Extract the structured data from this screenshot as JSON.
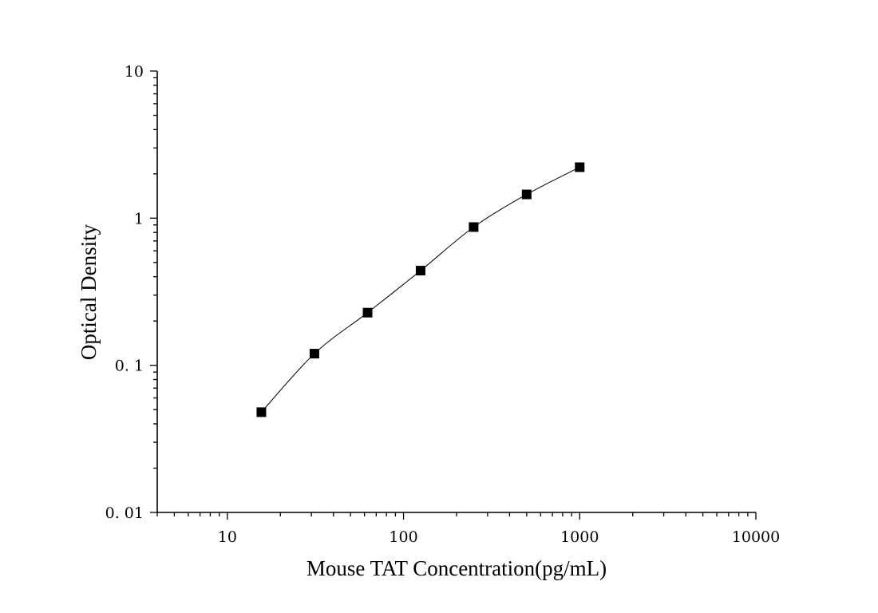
{
  "chart_data": {
    "type": "scatter",
    "xlabel": "Mouse TAT Concentration(pg/mL)",
    "ylabel": "Optical Density",
    "x_scale": "log",
    "y_scale": "log",
    "xlim": [
      4,
      10000
    ],
    "ylim": [
      0.01,
      10
    ],
    "x_ticks": [
      {
        "value": 10,
        "label": "10"
      },
      {
        "value": 100,
        "label": "100"
      },
      {
        "value": 1000,
        "label": "1000"
      },
      {
        "value": 10000,
        "label": "10000"
      }
    ],
    "y_ticks": [
      {
        "value": 0.01,
        "label": "0. 01"
      },
      {
        "value": 0.1,
        "label": "0. 1"
      },
      {
        "value": 1,
        "label": "1"
      },
      {
        "value": 10,
        "label": "10"
      }
    ],
    "grid": false,
    "series": [
      {
        "marker": "square",
        "color": "#000000",
        "x": [
          15.6,
          31.2,
          62.5,
          125,
          250,
          500,
          1000
        ],
        "y": [
          0.048,
          0.12,
          0.228,
          0.44,
          0.87,
          1.45,
          2.22
        ]
      }
    ]
  }
}
